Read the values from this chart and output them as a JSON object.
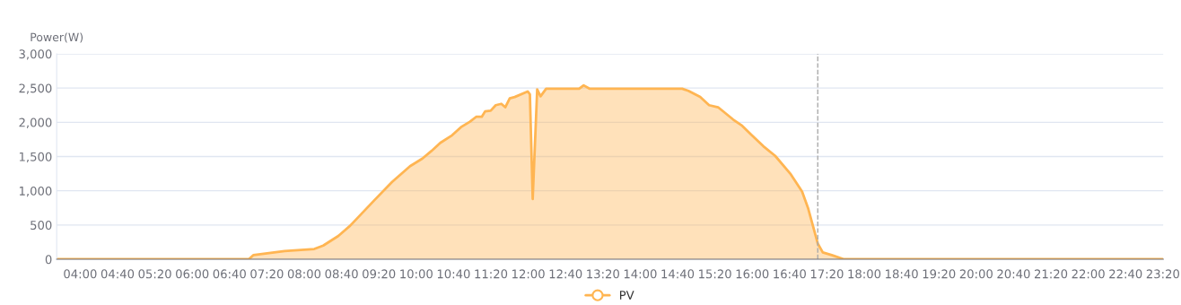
{
  "chart_data": {
    "type": "area",
    "ylabel": "Power(W)",
    "x": [
      3.58,
      7.01,
      7.09,
      7.65,
      8.18,
      8.34,
      8.61,
      8.82,
      9.25,
      9.57,
      9.89,
      10.11,
      10.27,
      10.43,
      10.64,
      10.8,
      10.96,
      11.07,
      11.17,
      11.23,
      11.33,
      11.42,
      11.52,
      11.59,
      11.67,
      11.76,
      11.99,
      12.03,
      12.08,
      12.16,
      12.22,
      12.32,
      12.91,
      12.99,
      13.1,
      14.75,
      14.86,
      15.07,
      15.23,
      15.39,
      15.66,
      15.82,
      15.98,
      16.2,
      16.41,
      16.68,
      16.89,
      17.0,
      17.17,
      17.26,
      17.42,
      17.64,
      23.33
    ],
    "series": [
      {
        "name": "PV",
        "color": "#ffb552",
        "values": [
          0,
          0,
          60,
          120,
          150,
          200,
          340,
          490,
          860,
          1130,
          1360,
          1470,
          1580,
          1700,
          1810,
          1930,
          2010,
          2080,
          2080,
          2160,
          2170,
          2250,
          2270,
          2220,
          2350,
          2370,
          2450,
          2410,
          880,
          2480,
          2380,
          2490,
          2490,
          2540,
          2490,
          2490,
          2460,
          2370,
          2250,
          2220,
          2040,
          1950,
          1820,
          1650,
          1510,
          1250,
          990,
          740,
          230,
          100,
          60,
          0,
          0
        ]
      }
    ],
    "xlim": [
      3.58,
      23.34
    ],
    "xticks": [
      {
        "value": 4,
        "label": "04:00"
      },
      {
        "value": 4.6667,
        "label": "04:40"
      },
      {
        "value": 5.3333,
        "label": "05:20"
      },
      {
        "value": 6,
        "label": "06:00"
      },
      {
        "value": 6.6667,
        "label": "06:40"
      },
      {
        "value": 7.3333,
        "label": "07:20"
      },
      {
        "value": 8,
        "label": "08:00"
      },
      {
        "value": 8.6667,
        "label": "08:40"
      },
      {
        "value": 9.3333,
        "label": "09:20"
      },
      {
        "value": 10,
        "label": "10:00"
      },
      {
        "value": 10.6667,
        "label": "10:40"
      },
      {
        "value": 11.3333,
        "label": "11:20"
      },
      {
        "value": 12,
        "label": "12:00"
      },
      {
        "value": 12.6667,
        "label": "12:40"
      },
      {
        "value": 13.3333,
        "label": "13:20"
      },
      {
        "value": 14,
        "label": "14:00"
      },
      {
        "value": 14.6667,
        "label": "14:40"
      },
      {
        "value": 15.3333,
        "label": "15:20"
      },
      {
        "value": 16,
        "label": "16:00"
      },
      {
        "value": 16.6667,
        "label": "16:40"
      },
      {
        "value": 17.3333,
        "label": "17:20"
      },
      {
        "value": 18,
        "label": "18:00"
      },
      {
        "value": 18.6667,
        "label": "18:40"
      },
      {
        "value": 19.3333,
        "label": "19:20"
      },
      {
        "value": 20,
        "label": "20:00"
      },
      {
        "value": 20.6667,
        "label": "20:40"
      },
      {
        "value": 21.3333,
        "label": "21:20"
      },
      {
        "value": 22,
        "label": "22:00"
      },
      {
        "value": 22.6667,
        "label": "22:40"
      },
      {
        "value": 23.3333,
        "label": "23:20"
      }
    ],
    "ylim": [
      0,
      3000
    ],
    "yticks": [
      {
        "value": 0,
        "label": "0"
      },
      {
        "value": 500,
        "label": "500"
      },
      {
        "value": 1000,
        "label": "1,000"
      },
      {
        "value": 1500,
        "label": "1,500"
      },
      {
        "value": 2000,
        "label": "2,000"
      },
      {
        "value": 2500,
        "label": "2,500"
      },
      {
        "value": 3000,
        "label": "3,000"
      }
    ],
    "ref_lines": [
      {
        "axis": "x",
        "value": 17.17,
        "color": "#aaaaaa",
        "line_style": "dashed"
      }
    ],
    "grid": "y",
    "legend": "bottom"
  }
}
